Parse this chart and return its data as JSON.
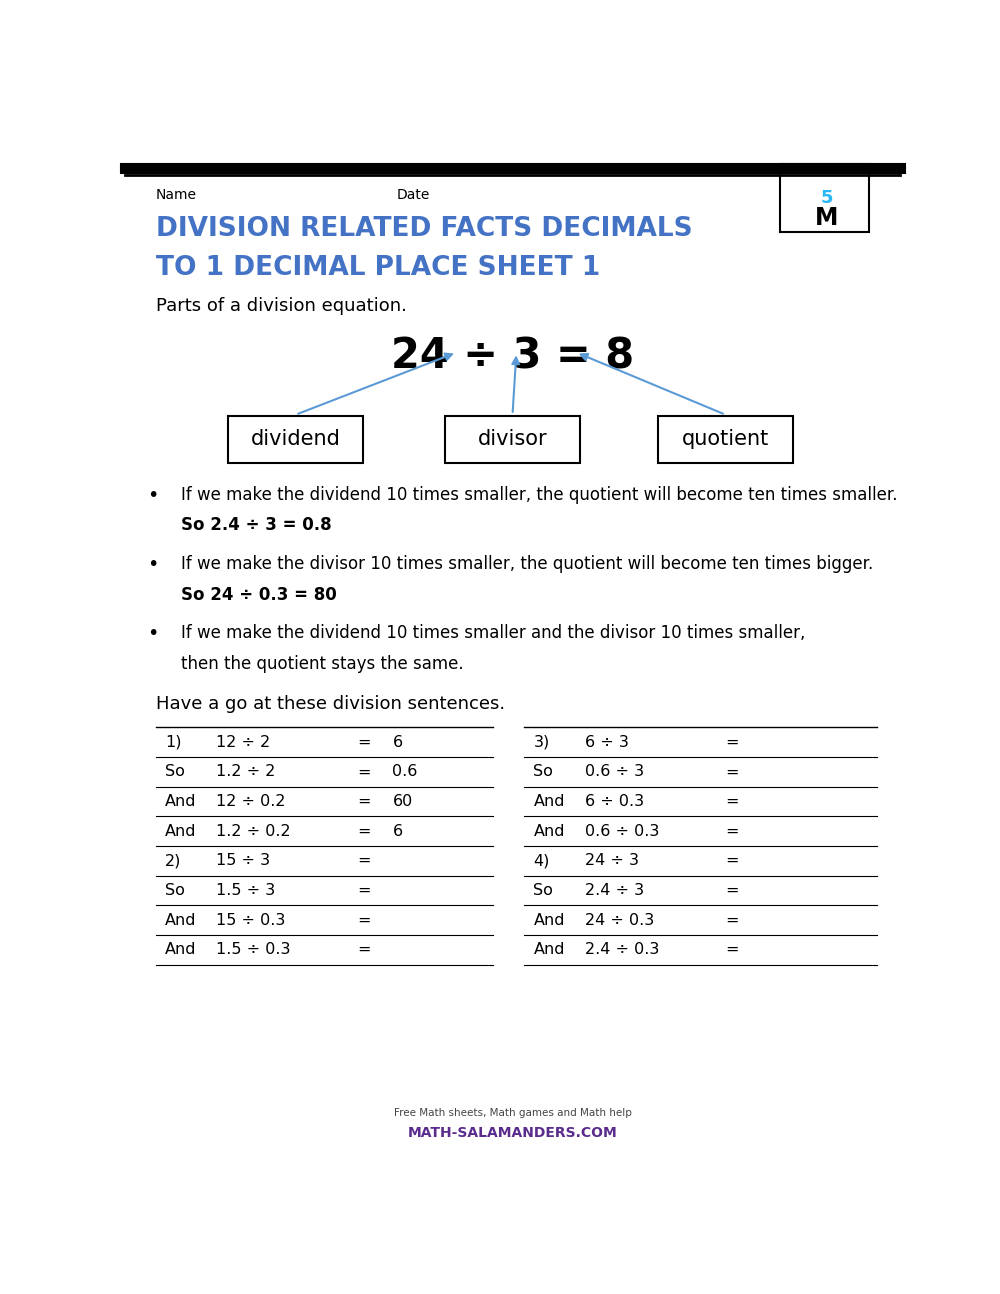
{
  "title_line1": "DIVISION RELATED FACTS DECIMALS",
  "title_line2": "TO 1 DECIMAL PLACE SHEET 1",
  "title_color": "#4472C4",
  "header_name": "Name",
  "header_date": "Date",
  "bg_color": "#FFFFFF",
  "parts_text": "Parts of a division equation.",
  "equation": "24 ÷ 3 = 8",
  "box_labels": [
    "dividend",
    "divisor",
    "quotient"
  ],
  "bullet1_normal": "If we make the dividend 10 times smaller, the quotient will become ten times smaller. ",
  "bullet1_bold": "So 2.4 ÷ 3 = 0.8",
  "bullet2_normal": "If we make the divisor 10 times smaller, the quotient will become ten times bigger. ",
  "bullet2_bold": "So 24 ÷ 0.3 = 80",
  "bullet3_line1": "If we make the dividend 10 times smaller and the divisor 10 times smaller,",
  "bullet3_line2": "then the quotient stays the same.",
  "have_a_go": "Have a go at these division sentences.",
  "left_table": [
    [
      "1)",
      "12 ÷ 2",
      "=",
      "6"
    ],
    [
      "So",
      "1.2 ÷ 2",
      "=",
      "0.6"
    ],
    [
      "And",
      "12 ÷ 0.2",
      "=",
      "60"
    ],
    [
      "And",
      "1.2 ÷ 0.2",
      "=",
      "6"
    ],
    [
      "2)",
      "15 ÷ 3",
      "=",
      ""
    ],
    [
      "So",
      "1.5 ÷ 3",
      "=",
      ""
    ],
    [
      "And",
      "15 ÷ 0.3",
      "=",
      ""
    ],
    [
      "And",
      "1.5 ÷ 0.3",
      "=",
      ""
    ]
  ],
  "right_table": [
    [
      "3)",
      "6 ÷ 3",
      "=",
      ""
    ],
    [
      "So",
      "0.6 ÷ 3",
      "=",
      ""
    ],
    [
      "And",
      "6 ÷ 0.3",
      "=",
      ""
    ],
    [
      "And",
      "0.6 ÷ 0.3",
      "=",
      ""
    ],
    [
      "4)",
      "24 ÷ 3",
      "=",
      ""
    ],
    [
      "So",
      "2.4 ÷ 3",
      "=",
      ""
    ],
    [
      "And",
      "24 ÷ 0.3",
      "=",
      ""
    ],
    [
      "And",
      "2.4 ÷ 0.3",
      "=",
      ""
    ]
  ],
  "arrow_color": "#5B9BD5",
  "footer_text1": "Free Math sheets, Math games and Math help",
  "footer_text2": "MATH-SALAMANDERS.COM"
}
